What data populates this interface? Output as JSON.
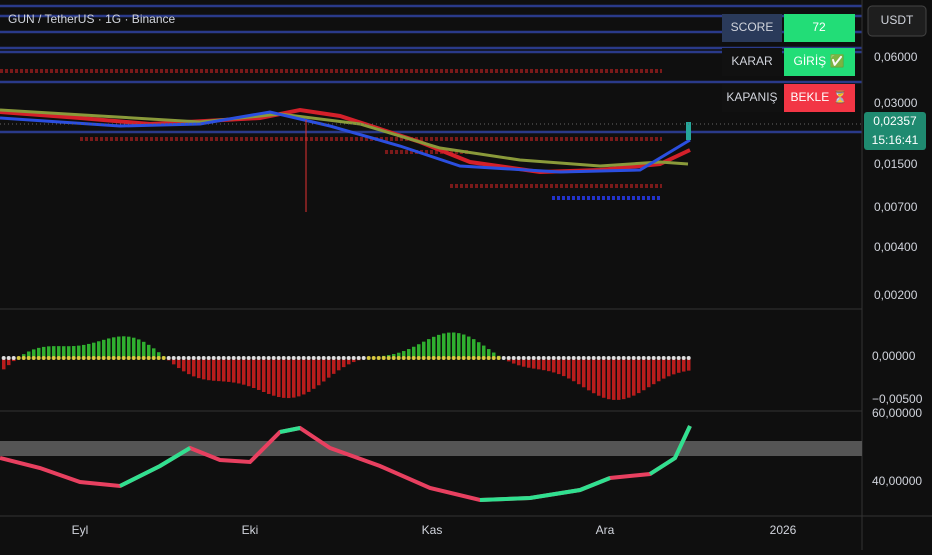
{
  "header": {
    "title": "GUN / TetherUS · 1G · Binance"
  },
  "currency": "USDT",
  "score_panel": [
    {
      "label": "SCORE",
      "value": "72"
    },
    {
      "label": "KARAR",
      "value": "GİRİŞ ✅"
    },
    {
      "label": "KAPANIŞ",
      "value": "BEKLE ⏳"
    }
  ],
  "price_axis": [
    "0,06000",
    "0,03000",
    "0,01500",
    "0,00700",
    "0,00400",
    "0,00200"
  ],
  "current_price": "0,02357",
  "countdown": "15:16:41",
  "oscillator_axis": [
    "0,00000",
    "−0,00500"
  ],
  "rsi_axis": [
    "60,00000",
    "40,00000"
  ],
  "time_axis": [
    "Eyl",
    "Eki",
    "Kas",
    "Ara",
    "2026"
  ]
}
